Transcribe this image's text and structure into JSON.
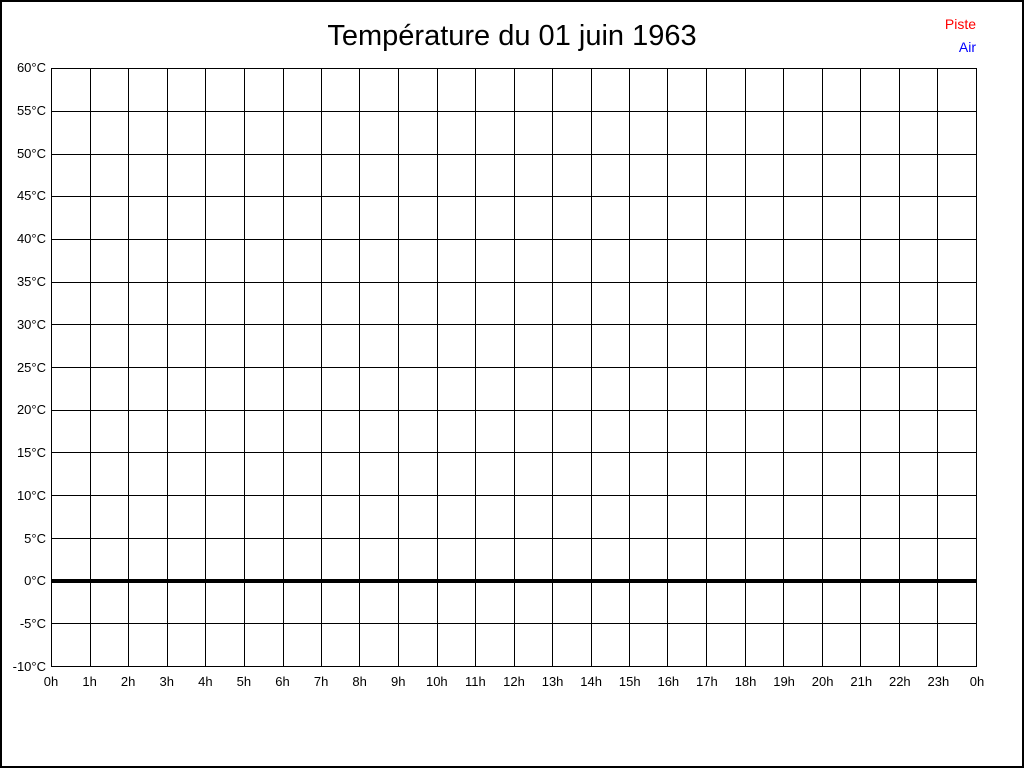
{
  "page": {
    "background": "#ffffff",
    "border_color": "#000000"
  },
  "header": {
    "title": "Température du 01 juin 1963"
  },
  "legend": {
    "position": "top-right",
    "items": [
      {
        "label": "Piste",
        "color": "#ff0000"
      },
      {
        "label": "Air",
        "color": "#0000ff"
      }
    ]
  },
  "chart_data": {
    "type": "line",
    "title": "Température du 01 juin 1963",
    "xlabel": "",
    "ylabel": "",
    "ylim": [
      -10,
      60
    ],
    "y_tick_step": 5,
    "y_tick_labels": [
      "60°C",
      "55°C",
      "50°C",
      "45°C",
      "40°C",
      "35°C",
      "30°C",
      "25°C",
      "20°C",
      "15°C",
      "10°C",
      "5°C",
      "0°C",
      "-5°C",
      "-10°C"
    ],
    "x_hours": [
      0,
      24
    ],
    "x_tick_labels": [
      "0h",
      "1h",
      "2h",
      "3h",
      "4h",
      "5h",
      "6h",
      "7h",
      "8h",
      "9h",
      "10h",
      "11h",
      "12h",
      "13h",
      "14h",
      "15h",
      "16h",
      "17h",
      "18h",
      "19h",
      "20h",
      "21h",
      "22h",
      "23h",
      "0h"
    ],
    "grid": true,
    "grid_color": "#000000",
    "legend_position": "top-right-outside",
    "baseline": {
      "value": 0,
      "label": "0°C",
      "color": "#000000",
      "style": "thick"
    },
    "series": [
      {
        "name": "Piste",
        "color": "#ff0000",
        "points": []
      },
      {
        "name": "Air",
        "color": "#0000ff",
        "points": []
      }
    ]
  }
}
